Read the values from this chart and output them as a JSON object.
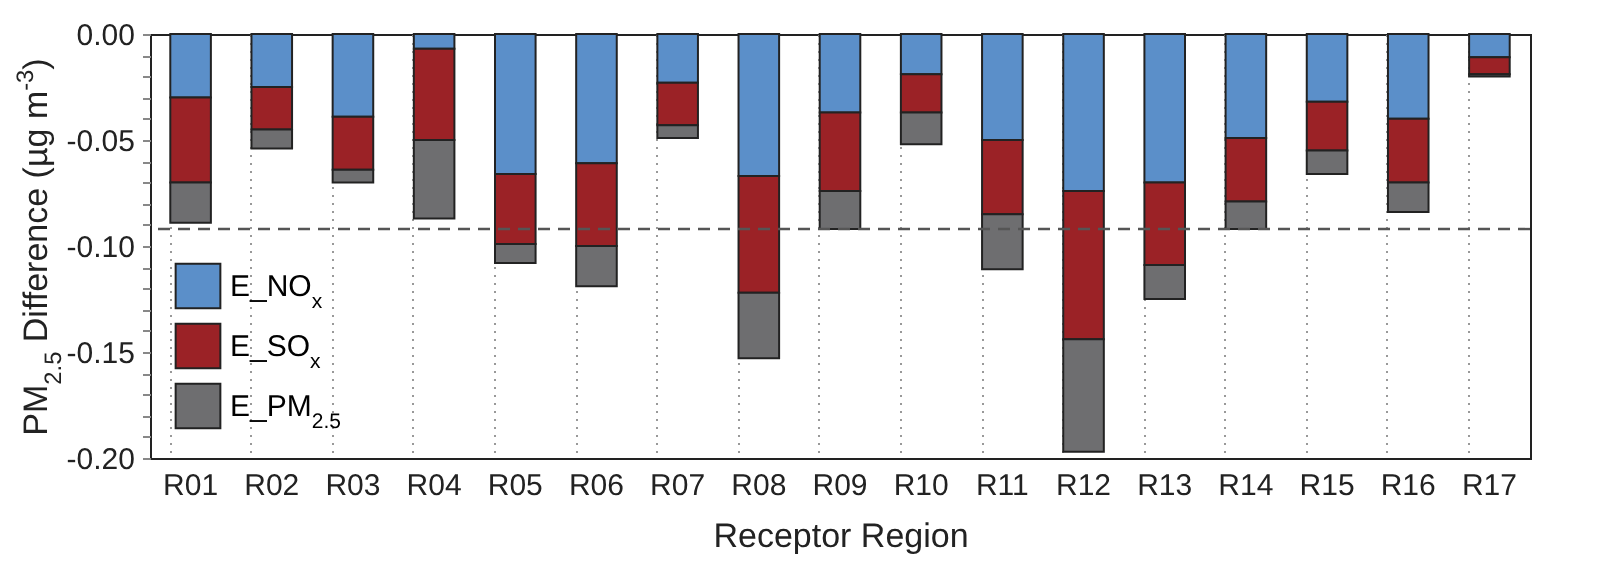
{
  "chart_data": {
    "type": "bar",
    "stacked": true,
    "xlabel": "Receptor Region",
    "ylabel": "PM$_{2.5}$ Difference (µg m$^{-3}$)",
    "categories": [
      "R01",
      "R02",
      "R03",
      "R04",
      "R05",
      "R06",
      "R07",
      "R08",
      "R09",
      "R10",
      "R11",
      "R12",
      "R13",
      "R14",
      "R15",
      "R16",
      "R17"
    ],
    "series": [
      {
        "name": "E_NO$_{x}$",
        "color": "#5b8fc9",
        "values": [
          -0.03,
          -0.025,
          -0.039,
          -0.007,
          -0.066,
          -0.061,
          -0.023,
          -0.067,
          -0.037,
          -0.019,
          -0.05,
          -0.074,
          -0.07,
          -0.049,
          -0.032,
          -0.04,
          -0.011
        ]
      },
      {
        "name": "E_SO$_{x}$",
        "color": "#9b2226",
        "values": [
          -0.04,
          -0.02,
          -0.025,
          -0.043,
          -0.033,
          -0.039,
          -0.02,
          -0.055,
          -0.037,
          -0.018,
          -0.035,
          -0.07,
          -0.039,
          -0.03,
          -0.023,
          -0.03,
          -0.008
        ]
      },
      {
        "name": "E_PM$_{2.5}$",
        "color": "#6e6e70",
        "values": [
          -0.019,
          -0.009,
          -0.006,
          -0.037,
          -0.009,
          -0.019,
          -0.006,
          -0.031,
          -0.018,
          -0.015,
          -0.026,
          -0.053,
          -0.016,
          -0.013,
          -0.011,
          -0.014,
          -0.001
        ]
      }
    ],
    "ylim": [
      -0.2,
      0
    ],
    "yticks": [
      {
        "value": 0,
        "label": "0.00"
      },
      {
        "value": -0.01,
        "label": null
      },
      {
        "value": -0.02,
        "label": null
      },
      {
        "value": -0.03,
        "label": null
      },
      {
        "value": -0.04,
        "label": null
      },
      {
        "value": -0.05,
        "label": "-0.05"
      },
      {
        "value": -0.06,
        "label": null
      },
      {
        "value": -0.07,
        "label": null
      },
      {
        "value": -0.08,
        "label": null
      },
      {
        "value": -0.09,
        "label": null
      },
      {
        "value": -0.1,
        "label": "-0.10"
      },
      {
        "value": -0.11,
        "label": null
      },
      {
        "value": -0.12,
        "label": null
      },
      {
        "value": -0.13,
        "label": null
      },
      {
        "value": -0.14,
        "label": null
      },
      {
        "value": -0.15,
        "label": "-0.15"
      },
      {
        "value": -0.16,
        "label": null
      },
      {
        "value": -0.17,
        "label": null
      },
      {
        "value": -0.18,
        "label": null
      },
      {
        "value": -0.19,
        "label": null
      },
      {
        "value": -0.2,
        "label": "-0.20"
      }
    ],
    "ref_lines": [
      {
        "axis": "y",
        "value": -0.092,
        "line_style": "dashed",
        "color": "#555555"
      }
    ],
    "grid": "x",
    "legend": "bottom left"
  }
}
